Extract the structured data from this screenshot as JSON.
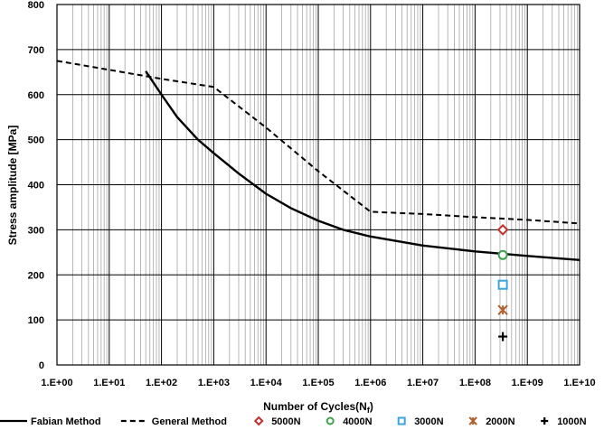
{
  "chart_data": {
    "type": "line",
    "xlabel": "Number of Cycles(N",
    "xlabel_sub": "f",
    "xlabel_end": ")",
    "ylabel": "Stress amplitude [MPa]",
    "x_scale": "log",
    "xlim": [
      1,
      10000000000
    ],
    "ylim": [
      0,
      800
    ],
    "x_ticks": [
      1,
      10,
      100,
      1000,
      10000,
      100000,
      1000000,
      10000000,
      100000000,
      1000000000,
      10000000000
    ],
    "x_tick_labels": [
      "1.E+00",
      "1.E+01",
      "1.E+02",
      "1.E+03",
      "1.E+04",
      "1.E+05",
      "1.E+06",
      "1.E+07",
      "1.E+08",
      "1.E+09",
      "1.E+10"
    ],
    "y_ticks": [
      0,
      100,
      200,
      300,
      400,
      500,
      600,
      700,
      800
    ],
    "y_tick_labels": [
      "0",
      "100",
      "200",
      "300",
      "400",
      "500",
      "600",
      "700",
      "800"
    ],
    "grid": "major and minor",
    "legend_position": "bottom",
    "series": [
      {
        "name": "Fabian Method",
        "style": "solid",
        "color": "#000000",
        "points": [
          [
            50,
            652
          ],
          [
            100,
            600
          ],
          [
            200,
            550
          ],
          [
            500,
            500
          ],
          [
            1000,
            470
          ],
          [
            3000,
            425
          ],
          [
            10000,
            380
          ],
          [
            30000,
            348
          ],
          [
            100000,
            320
          ],
          [
            300000,
            300
          ],
          [
            1000000,
            285
          ],
          [
            10000000,
            265
          ],
          [
            100000000,
            252
          ],
          [
            1000000000,
            242
          ],
          [
            10000000000,
            233
          ]
        ]
      },
      {
        "name": "General Method",
        "style": "dashed",
        "color": "#000000",
        "points": [
          [
            1,
            675
          ],
          [
            100,
            635
          ],
          [
            1000,
            617
          ],
          [
            10000,
            527
          ],
          [
            100000,
            430
          ],
          [
            1000000,
            340
          ],
          [
            10000000,
            335
          ],
          [
            100000000,
            328
          ],
          [
            1000000000,
            322
          ],
          [
            10000000000,
            314
          ]
        ]
      },
      {
        "name": "5000N",
        "marker": "diamond",
        "color": "#c0312c",
        "points": [
          [
            340000000,
            300
          ]
        ]
      },
      {
        "name": "4000N",
        "marker": "circle",
        "color": "#3fa34d",
        "points": [
          [
            340000000,
            244
          ]
        ]
      },
      {
        "name": "3000N",
        "marker": "square",
        "color": "#3aa6dd",
        "points": [
          [
            340000000,
            178
          ]
        ]
      },
      {
        "name": "2000N",
        "marker": "star",
        "color": "#b0602c",
        "points": [
          [
            340000000,
            122
          ]
        ]
      },
      {
        "name": "1000N",
        "marker": "plus",
        "color": "#000000",
        "points": [
          [
            340000000,
            63
          ]
        ]
      }
    ]
  }
}
